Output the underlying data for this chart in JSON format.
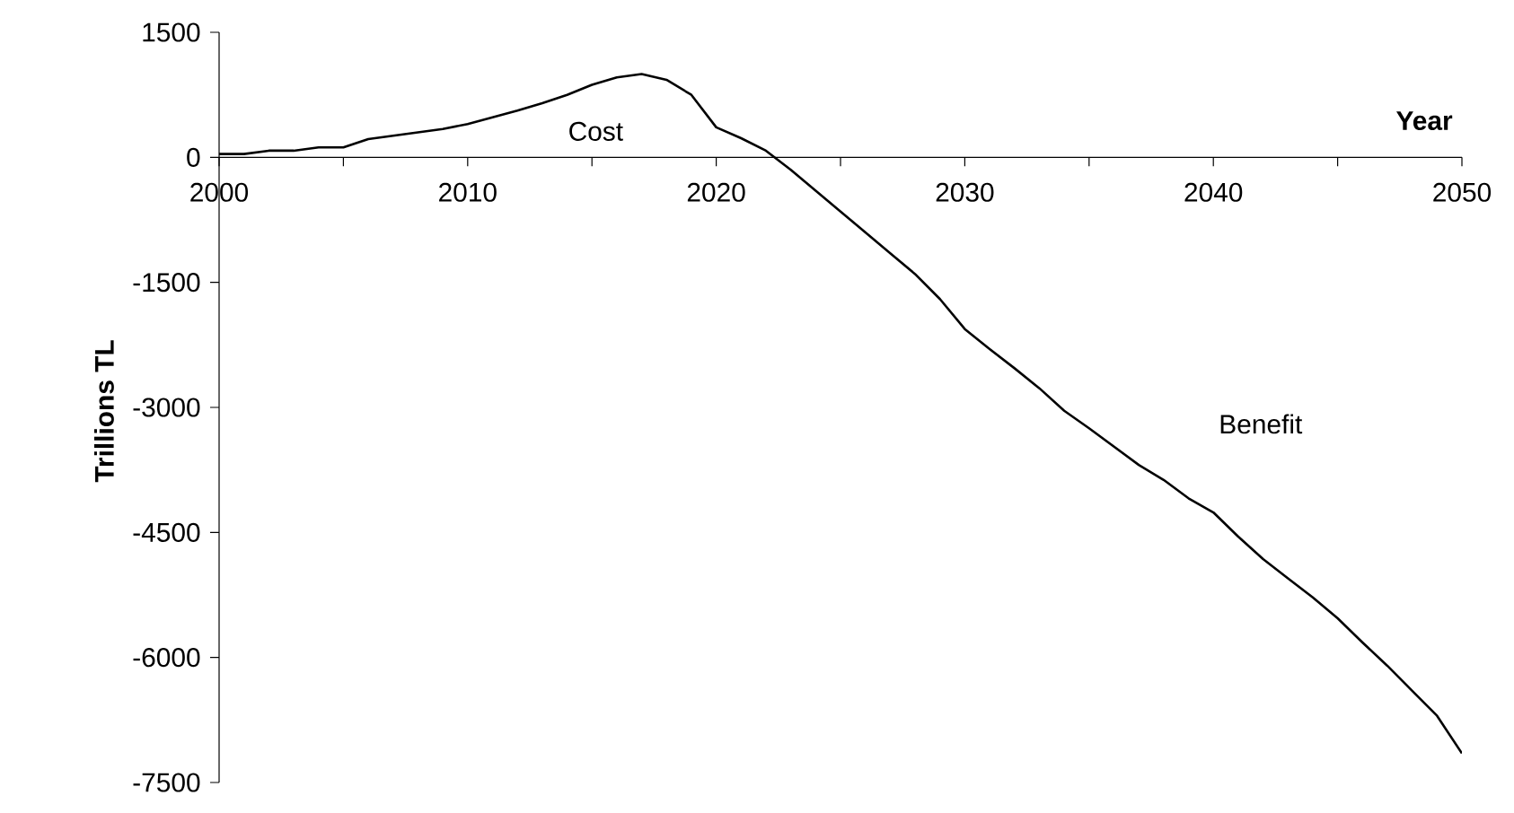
{
  "chart_data": {
    "type": "line",
    "xlabel": "Year",
    "ylabel": "Trillions TL",
    "x": [
      2000,
      2001,
      2002,
      2003,
      2004,
      2005,
      2006,
      2007,
      2008,
      2009,
      2010,
      2011,
      2012,
      2013,
      2014,
      2015,
      2016,
      2017,
      2018,
      2019,
      2020,
      2021,
      2022,
      2023,
      2024,
      2025,
      2026,
      2027,
      2028,
      2029,
      2030,
      2031,
      2032,
      2033,
      2034,
      2035,
      2036,
      2037,
      2038,
      2039,
      2040,
      2041,
      2042,
      2043,
      2044,
      2045,
      2046,
      2047,
      2048,
      2049,
      2050
    ],
    "series": [
      {
        "color": "#000000",
        "values": [
          40,
          40,
          80,
          80,
          120,
          120,
          220,
          260,
          300,
          340,
          400,
          480,
          560,
          650,
          750,
          870,
          960,
          1000,
          930,
          750,
          360,
          230,
          80,
          -150,
          -400,
          -650,
          -900,
          -1150,
          -1400,
          -1700,
          -2060,
          -2300,
          -2530,
          -2770,
          -3040,
          -3250,
          -3470,
          -3690,
          -3870,
          -4090,
          -4260,
          -4550,
          -4820,
          -5050,
          -5280,
          -5530,
          -5820,
          -6100,
          -6400,
          -6700,
          -7150
        ]
      }
    ],
    "xlim": [
      2000,
      2050
    ],
    "ylim": [
      -7500,
      1500
    ],
    "xticks": [
      2000,
      {
        "value": 2005,
        "label": null
      },
      2010,
      {
        "value": 2015,
        "label": null
      },
      2020,
      {
        "value": 2025,
        "label": null
      },
      2030,
      {
        "value": 2035,
        "label": null
      },
      2040,
      {
        "value": 2045,
        "label": null
      },
      2050
    ],
    "yticks": [
      -7500,
      -6000,
      -4500,
      -3000,
      -1500,
      0,
      1500
    ],
    "annotations": [
      "Cost",
      "Benefit"
    ],
    "grid": false,
    "marker": "none",
    "line_style": "solid"
  }
}
